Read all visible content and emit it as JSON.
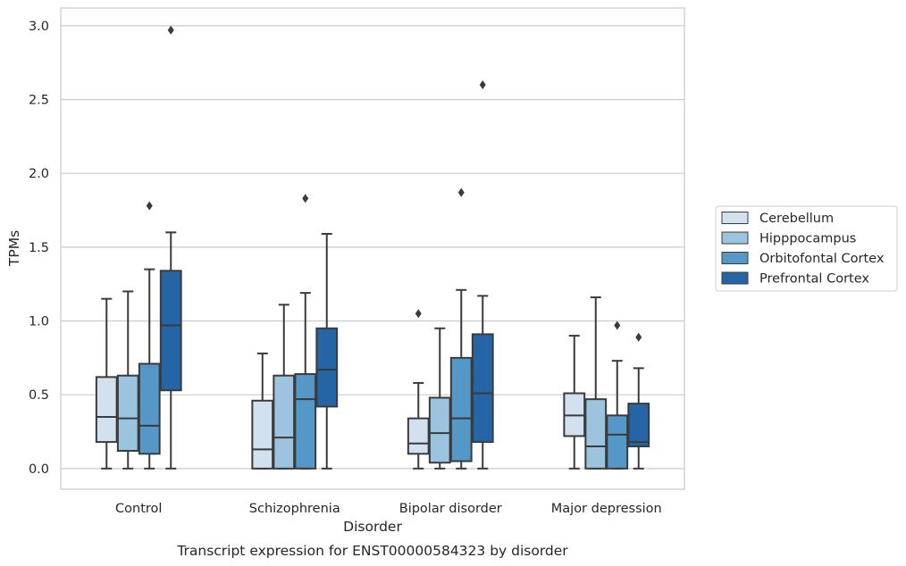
{
  "chart_data": {
    "type": "box",
    "xlabel": "Disorder",
    "ylabel": "TPMs",
    "caption": "Transcript expression for ENST00000584323 by disorder",
    "ylim": [
      -0.14,
      3.12
    ],
    "yticks": [
      "0.0",
      "0.5",
      "1.0",
      "1.5",
      "2.0",
      "2.5",
      "3.0"
    ],
    "ytick_values": [
      0,
      0.5,
      1.0,
      1.5,
      2.0,
      2.5,
      3.0
    ],
    "grid": true,
    "legend_position": "right",
    "categories": [
      "Control",
      "Schizophrenia",
      "Bipolar disorder",
      "Major depression"
    ],
    "series": [
      {
        "name": "Cerebellum",
        "color": "#d1e1f0",
        "boxes": [
          {
            "whislo": 0.0,
            "q1": 0.18,
            "med": 0.35,
            "q3": 0.62,
            "whishi": 1.15,
            "fliers": []
          },
          {
            "whislo": 0.0,
            "q1": 0.0,
            "med": 0.13,
            "q3": 0.46,
            "whishi": 0.78,
            "fliers": []
          },
          {
            "whislo": 0.0,
            "q1": 0.1,
            "med": 0.17,
            "q3": 0.34,
            "whishi": 0.58,
            "fliers": [
              1.05
            ]
          },
          {
            "whislo": 0.0,
            "q1": 0.22,
            "med": 0.36,
            "q3": 0.51,
            "whishi": 0.9,
            "fliers": []
          }
        ]
      },
      {
        "name": "Hipppocampus",
        "color": "#9cc4de",
        "boxes": [
          {
            "whislo": 0.0,
            "q1": 0.12,
            "med": 0.34,
            "q3": 0.63,
            "whishi": 1.2,
            "fliers": []
          },
          {
            "whislo": 0.0,
            "q1": 0.0,
            "med": 0.21,
            "q3": 0.63,
            "whishi": 1.11,
            "fliers": []
          },
          {
            "whislo": 0.0,
            "q1": 0.04,
            "med": 0.24,
            "q3": 0.48,
            "whishi": 0.95,
            "fliers": []
          },
          {
            "whislo": 0.0,
            "q1": 0.0,
            "med": 0.15,
            "q3": 0.47,
            "whishi": 1.16,
            "fliers": []
          }
        ]
      },
      {
        "name": "Orbitofontal Cortex",
        "color": "#5597c6",
        "boxes": [
          {
            "whislo": 0.0,
            "q1": 0.1,
            "med": 0.29,
            "q3": 0.71,
            "whishi": 1.35,
            "fliers": [
              1.78
            ]
          },
          {
            "whislo": 0.0,
            "q1": 0.0,
            "med": 0.47,
            "q3": 0.64,
            "whishi": 1.19,
            "fliers": [
              1.83
            ]
          },
          {
            "whislo": 0.0,
            "q1": 0.05,
            "med": 0.34,
            "q3": 0.75,
            "whishi": 1.21,
            "fliers": [
              1.87
            ]
          },
          {
            "whislo": 0.0,
            "q1": 0.0,
            "med": 0.23,
            "q3": 0.36,
            "whishi": 0.73,
            "fliers": [
              0.97
            ]
          }
        ]
      },
      {
        "name": "Prefrontal Cortex",
        "color": "#2565a5",
        "boxes": [
          {
            "whislo": 0.0,
            "q1": 0.53,
            "med": 0.97,
            "q3": 1.34,
            "whishi": 1.6,
            "fliers": [
              2.97
            ]
          },
          {
            "whislo": 0.0,
            "q1": 0.42,
            "med": 0.67,
            "q3": 0.95,
            "whishi": 1.59,
            "fliers": []
          },
          {
            "whislo": 0.0,
            "q1": 0.18,
            "med": 0.51,
            "q3": 0.91,
            "whishi": 1.17,
            "fliers": [
              2.6
            ]
          },
          {
            "whislo": 0.0,
            "q1": 0.15,
            "med": 0.18,
            "q3": 0.44,
            "whishi": 0.68,
            "fliers": [
              0.89
            ]
          }
        ]
      }
    ]
  }
}
